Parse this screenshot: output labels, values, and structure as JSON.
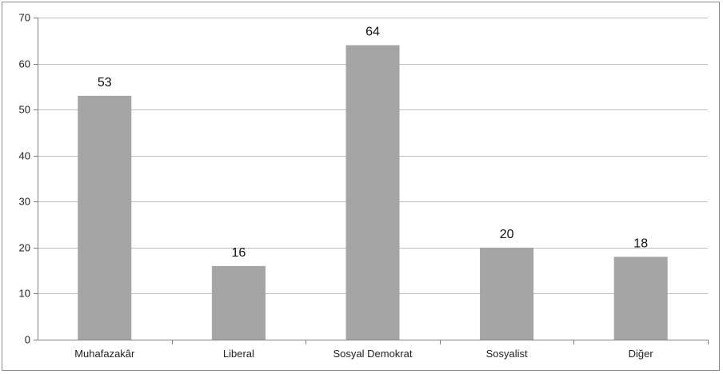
{
  "chart_data": {
    "type": "bar",
    "categories": [
      "Muhafazakâr",
      "Liberal",
      "Sosyal Demokrat",
      "Sosyalist",
      "Diğer"
    ],
    "values": [
      53,
      16,
      64,
      20,
      18
    ],
    "title": "",
    "xlabel": "",
    "ylabel": "",
    "ylim": [
      0,
      70
    ],
    "yticks": [
      0,
      10,
      20,
      30,
      40,
      50,
      60,
      70
    ],
    "grid": true,
    "legend": "none",
    "bar_color": "#a5a5a5",
    "gridline_color": "#bfbfbf",
    "axis_color": "#808080"
  }
}
